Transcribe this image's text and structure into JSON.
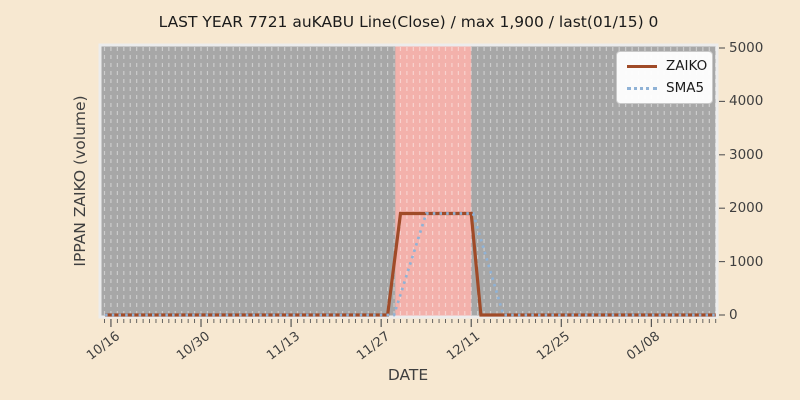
{
  "chart_data": {
    "type": "line",
    "title": "LAST YEAR 7721 auKABU Line(Close) / max 1,900 / last(01/15) 0",
    "xlabel": "DATE",
    "ylabel": "IPPAN ZAIKO (volume)",
    "ylim": [
      0,
      5000
    ],
    "y_ticks": [
      0,
      1000,
      2000,
      3000,
      4000,
      5000
    ],
    "y_axis_side": "right",
    "grid": "vertical-daily-dashed",
    "x_domain_days": [
      -1.7,
      94.2
    ],
    "x_ticks": [
      {
        "label": "10/16",
        "day": 0
      },
      {
        "label": "10/30",
        "day": 14
      },
      {
        "label": "11/13",
        "day": 28
      },
      {
        "label": "11/27",
        "day": 42
      },
      {
        "label": "12/11",
        "day": 56
      },
      {
        "label": "12/25",
        "day": 70
      },
      {
        "label": "01/08",
        "day": 84
      }
    ],
    "minor_tick_interval_days": 1,
    "highlight_band": {
      "from_day": 44.2,
      "to_day": 56,
      "from_date": "11/29",
      "to_date": "12/11",
      "color": "#f3b1ab"
    },
    "series": [
      {
        "name": "ZAIKO",
        "color": "#a04b28",
        "style": "solid",
        "width": 3.2,
        "max_value": 1900,
        "points": [
          {
            "day": -0.9,
            "value": 0
          },
          {
            "day": 43,
            "date": "11/28",
            "value": 0
          },
          {
            "day": 45,
            "date": "11/30",
            "value": 1900
          },
          {
            "day": 56,
            "date": "12/11",
            "value": 1900
          },
          {
            "day": 57.5,
            "date": "12/12",
            "value": 0
          },
          {
            "day": 94,
            "value": 0
          }
        ]
      },
      {
        "name": "SMA5",
        "color": "#8fb2d6",
        "style": "dotted",
        "width": 2.7,
        "points": [
          {
            "day": -0.9,
            "value": 0
          },
          {
            "day": 44,
            "date": "11/29",
            "value": 0
          },
          {
            "day": 49,
            "date": "12/04",
            "value": 1900
          },
          {
            "day": 56.3,
            "date": "12/11",
            "value": 1900
          },
          {
            "day": 61,
            "date": "12/16",
            "value": 0
          },
          {
            "day": 94,
            "value": 0
          }
        ]
      }
    ],
    "legend": {
      "position": "upper-right"
    },
    "colors": {
      "figure_bg": "#f7e8d1",
      "plot_bg": "#a7a7a7",
      "grid": "rgba(255,255,255,0.42)",
      "frame": "#ececec",
      "tick_text": "#3f3f3f",
      "title_text": "#1b1b1b"
    }
  }
}
